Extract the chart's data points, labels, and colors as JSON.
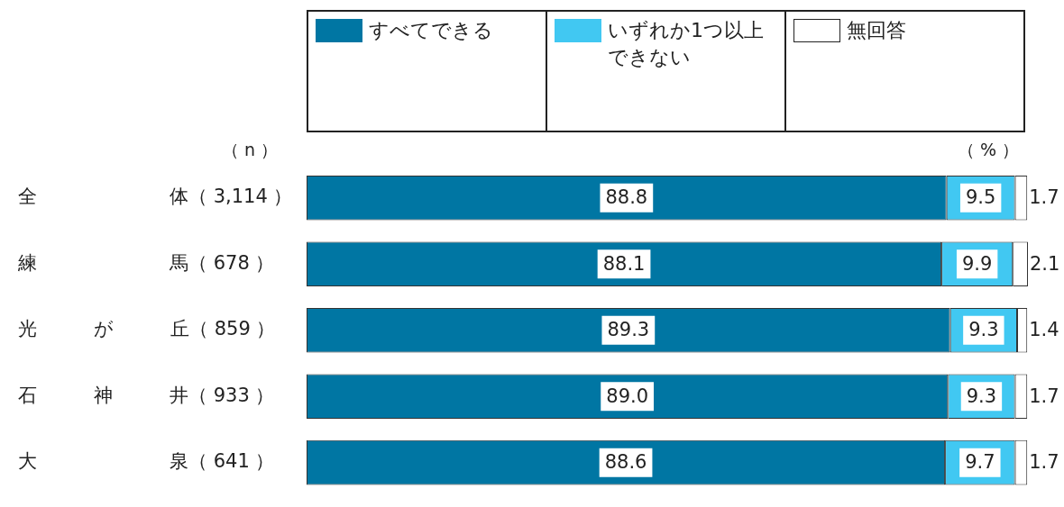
{
  "chart_data": {
    "type": "bar",
    "orientation": "horizontal",
    "stacked": true,
    "categories": [
      "全　　　　　　　体（ 3,114 ）",
      "練　　　　　　　馬（ 678 ）",
      "光　　　が　　　丘（ 859 ）",
      "石　　　神　　　井（ 933 ）",
      "大　　　　　　　泉（ 641 ）"
    ],
    "series": [
      {
        "name": "すべてできる",
        "color": "#0076a3",
        "values": [
          88.8,
          88.1,
          89.3,
          89.0,
          88.6
        ],
        "value_labels": [
          "88.8",
          "88.1",
          "89.3",
          "89.0",
          "88.6"
        ]
      },
      {
        "name": "いずれか1つ以上できない",
        "color": "#41c8f2",
        "values": [
          9.5,
          9.9,
          9.3,
          9.3,
          9.7
        ],
        "value_labels": [
          "9.5",
          "9.9",
          "9.3",
          "9.3",
          "9.7"
        ]
      },
      {
        "name": "無回答",
        "color": "#ffffff",
        "values": [
          1.7,
          2.1,
          1.4,
          1.7,
          1.7
        ],
        "value_labels": [
          "1.7",
          "2.1",
          "1.4",
          "1.7",
          "1.7"
        ]
      }
    ],
    "xlim": [
      0,
      100.1
    ],
    "xlabel": "（ % ）",
    "annotations": [
      "（ n ）"
    ],
    "legend": "top",
    "tick_labels": "y"
  }
}
